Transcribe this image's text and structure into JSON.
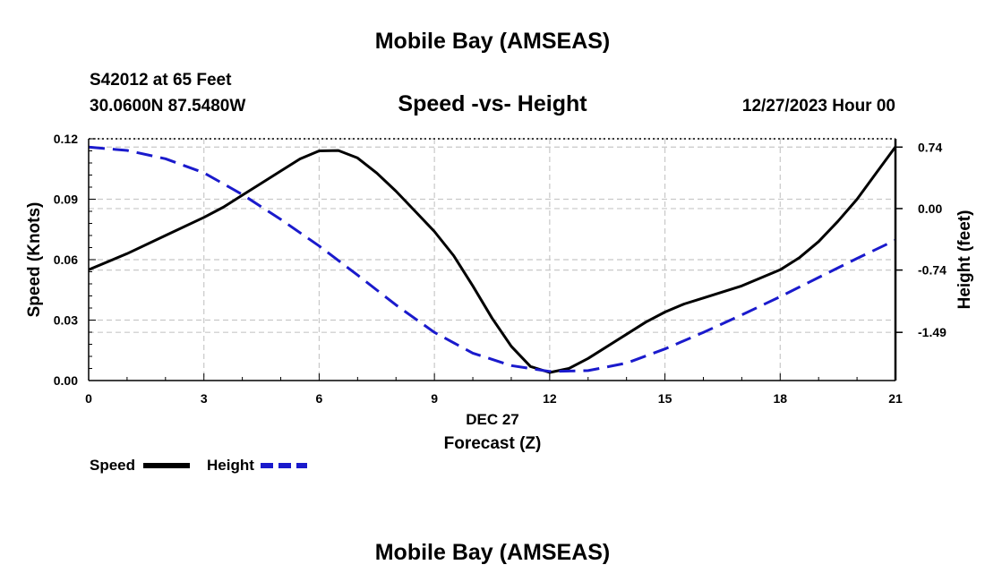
{
  "header": {
    "title": "Mobile Bay (AMSEAS)",
    "station": "S42012 at 65 Feet",
    "coords": "30.0600N  87.5480W",
    "subtitle": "Speed -vs- Height",
    "datetime": "12/27/2023 Hour 00"
  },
  "footer": {
    "title": "Mobile Bay (AMSEAS)"
  },
  "colors": {
    "speed": "#000000",
    "height": "#1a1acc",
    "grid": "#c8c8c8"
  },
  "chart_data": {
    "type": "line",
    "title": "Speed -vs- Height",
    "xlabel": "Forecast (Z)",
    "xsublabel": "DEC 27",
    "ylabel": "Speed (Knots)",
    "y2label": "Height (feet)",
    "xlim": [
      0,
      21
    ],
    "ylim": [
      0,
      0.12
    ],
    "y2lim": [
      -2.07,
      0.84
    ],
    "xticks": [
      0,
      3,
      6,
      9,
      12,
      15,
      18,
      21
    ],
    "xtick_labels": [
      "0",
      "3",
      "6",
      "9",
      "12",
      "15",
      "18",
      "21"
    ],
    "yticks": [
      0,
      0.03,
      0.06,
      0.09,
      0.12
    ],
    "ytick_labels": [
      "0.00",
      "0.03",
      "0.06",
      "0.09",
      "0.12"
    ],
    "y2ticks": [
      0.74,
      0.0,
      -0.74,
      -1.49
    ],
    "y2tick_labels": [
      "0.74",
      "0.00",
      "-0.74",
      "-1.49"
    ],
    "grid": true,
    "legend_position": "bottom-left",
    "series": [
      {
        "name": "Speed",
        "axis": "left",
        "style": "solid",
        "x": [
          0,
          1,
          2,
          3,
          3.5,
          4,
          4.5,
          5,
          5.5,
          6,
          6.5,
          7,
          7.5,
          8,
          8.5,
          9,
          9.5,
          10,
          10.5,
          11,
          11.5,
          12,
          12.5,
          13,
          14,
          14.5,
          15,
          15.5,
          16,
          17,
          18,
          18.5,
          19,
          19.5,
          20,
          20.5,
          21
        ],
        "values": [
          0.055,
          0.063,
          0.072,
          0.081,
          0.086,
          0.092,
          0.098,
          0.104,
          0.11,
          0.114,
          0.1142,
          0.1105,
          0.103,
          0.094,
          0.084,
          0.074,
          0.062,
          0.047,
          0.031,
          0.017,
          0.007,
          0.004,
          0.006,
          0.011,
          0.023,
          0.029,
          0.034,
          0.038,
          0.041,
          0.047,
          0.055,
          0.061,
          0.069,
          0.079,
          0.09,
          0.103,
          0.116
        ]
      },
      {
        "name": "Height",
        "axis": "right",
        "style": "dashed",
        "x": [
          0,
          1,
          2,
          3,
          4,
          5,
          6,
          7,
          8,
          9,
          10,
          11,
          12,
          13,
          14,
          15,
          16,
          17,
          18,
          19,
          20,
          21
        ],
        "values": [
          0.74,
          0.7,
          0.6,
          0.43,
          0.17,
          -0.13,
          -0.45,
          -0.8,
          -1.16,
          -1.49,
          -1.74,
          -1.89,
          -1.96,
          -1.95,
          -1.86,
          -1.69,
          -1.49,
          -1.28,
          -1.06,
          -0.83,
          -0.6,
          -0.38
        ]
      }
    ]
  }
}
